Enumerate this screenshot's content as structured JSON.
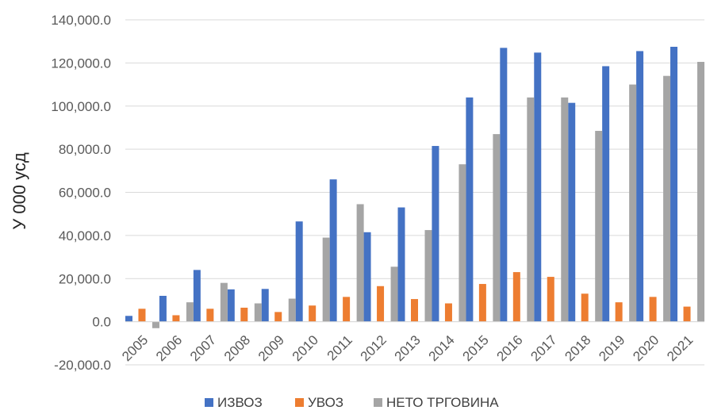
{
  "chart_data": {
    "type": "bar",
    "title": "",
    "xlabel": "",
    "ylabel": "У 000 усд",
    "ylim": [
      -20000,
      140000
    ],
    "ytick_step": 20000,
    "ytick_labels": [
      "-20,000.0",
      "0.0",
      "20,000.0",
      "40,000.0",
      "60,000.0",
      "80,000.0",
      "100,000.0",
      "120,000.0",
      "140,000.0"
    ],
    "grid": true,
    "legend_position": "bottom",
    "categories": [
      "2005",
      "2006",
      "2007",
      "2008",
      "2009",
      "2010",
      "2011",
      "2012",
      "2013",
      "2014",
      "2015",
      "2016",
      "2017",
      "2018",
      "2019",
      "2020",
      "2021"
    ],
    "series": [
      {
        "name": "ИЗВОЗ",
        "color": "#4472c4",
        "values": [
          2700,
          12000,
          24000,
          15000,
          15200,
          46500,
          66000,
          41500,
          53000,
          81500,
          104000,
          127000,
          124800,
          101500,
          118500,
          125500,
          127500
        ]
      },
      {
        "name": "УВОЗ",
        "color": "#ed7d31",
        "values": [
          6000,
          3000,
          6000,
          6500,
          4500,
          7500,
          11500,
          16500,
          10500,
          8500,
          17500,
          23000,
          20800,
          13000,
          9000,
          11500,
          7000
        ]
      },
      {
        "name": "НЕТО ТРГОВИНА",
        "color": "#a5a5a5",
        "values": [
          -3000,
          9000,
          18000,
          8500,
          10700,
          39000,
          54500,
          25500,
          42500,
          73000,
          87000,
          104000,
          104000,
          88500,
          110000,
          114000,
          120500
        ]
      }
    ]
  }
}
